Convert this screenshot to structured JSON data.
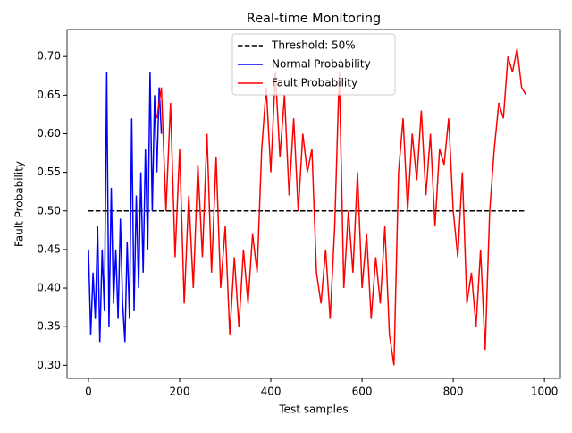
{
  "chart_data": {
    "type": "line",
    "title": "Real-time Monitoring",
    "x_label": "Test samples",
    "y_label": "Fault Probability",
    "xlim": [
      -47,
      1035
    ],
    "ylim": [
      0.283,
      0.735
    ],
    "xticks": [
      0,
      200,
      400,
      600,
      800,
      1000
    ],
    "yticks": [
      {
        "value": 0.3,
        "label": "0.30"
      },
      0.35,
      {
        "value": 0.4,
        "label": "0.40"
      },
      0.45,
      {
        "value": 0.5,
        "label": "0.50"
      },
      0.55,
      {
        "value": 0.6,
        "label": "0.60"
      },
      0.65,
      {
        "value": 0.7,
        "label": "0.70"
      }
    ],
    "legend": "upper center",
    "series": [
      {
        "name": "Threshold: 50%",
        "color": "#000000",
        "style": "dashed",
        "x": [
          0,
          960
        ],
        "values": [
          0.5,
          0.5
        ]
      },
      {
        "name": "Normal Probability",
        "color": "#0000ff",
        "style": "solid",
        "x": [
          0,
          5,
          10,
          15,
          20,
          25,
          30,
          35,
          40,
          45,
          50,
          55,
          60,
          65,
          70,
          75,
          80,
          85,
          90,
          95,
          100,
          105,
          110,
          115,
          120,
          125,
          130,
          135,
          140,
          145,
          150,
          155,
          160
        ],
        "values": [
          0.45,
          0.34,
          0.42,
          0.36,
          0.48,
          0.33,
          0.45,
          0.37,
          0.68,
          0.35,
          0.53,
          0.38,
          0.45,
          0.36,
          0.49,
          0.38,
          0.33,
          0.46,
          0.36,
          0.62,
          0.37,
          0.52,
          0.4,
          0.55,
          0.42,
          0.58,
          0.45,
          0.68,
          0.5,
          0.65,
          0.55,
          0.66,
          0.6
        ]
      },
      {
        "name": "Fault Probability",
        "color": "#ff0000",
        "style": "solid",
        "x": [
          150,
          160,
          170,
          180,
          190,
          200,
          210,
          220,
          230,
          240,
          250,
          260,
          270,
          280,
          290,
          300,
          310,
          320,
          330,
          340,
          350,
          360,
          370,
          380,
          390,
          400,
          410,
          420,
          430,
          440,
          450,
          460,
          470,
          480,
          490,
          500,
          510,
          520,
          530,
          540,
          550,
          560,
          570,
          580,
          590,
          600,
          610,
          620,
          630,
          640,
          650,
          660,
          670,
          680,
          690,
          700,
          710,
          720,
          730,
          740,
          750,
          760,
          770,
          780,
          790,
          800,
          810,
          820,
          830,
          840,
          850,
          860,
          870,
          880,
          890,
          900,
          910,
          920,
          930,
          940,
          950,
          960
        ],
        "values": [
          0.62,
          0.66,
          0.5,
          0.64,
          0.44,
          0.58,
          0.38,
          0.52,
          0.4,
          0.56,
          0.44,
          0.6,
          0.42,
          0.57,
          0.4,
          0.48,
          0.34,
          0.44,
          0.35,
          0.45,
          0.38,
          0.47,
          0.42,
          0.58,
          0.66,
          0.55,
          0.68,
          0.57,
          0.65,
          0.52,
          0.62,
          0.5,
          0.6,
          0.55,
          0.58,
          0.42,
          0.38,
          0.45,
          0.36,
          0.48,
          0.68,
          0.4,
          0.5,
          0.42,
          0.55,
          0.4,
          0.47,
          0.36,
          0.44,
          0.38,
          0.48,
          0.34,
          0.3,
          0.55,
          0.62,
          0.5,
          0.6,
          0.54,
          0.63,
          0.52,
          0.6,
          0.48,
          0.58,
          0.56,
          0.62,
          0.5,
          0.44,
          0.55,
          0.38,
          0.42,
          0.35,
          0.45,
          0.32,
          0.5,
          0.58,
          0.64,
          0.62,
          0.7,
          0.68,
          0.71,
          0.66,
          0.65
        ]
      }
    ]
  }
}
